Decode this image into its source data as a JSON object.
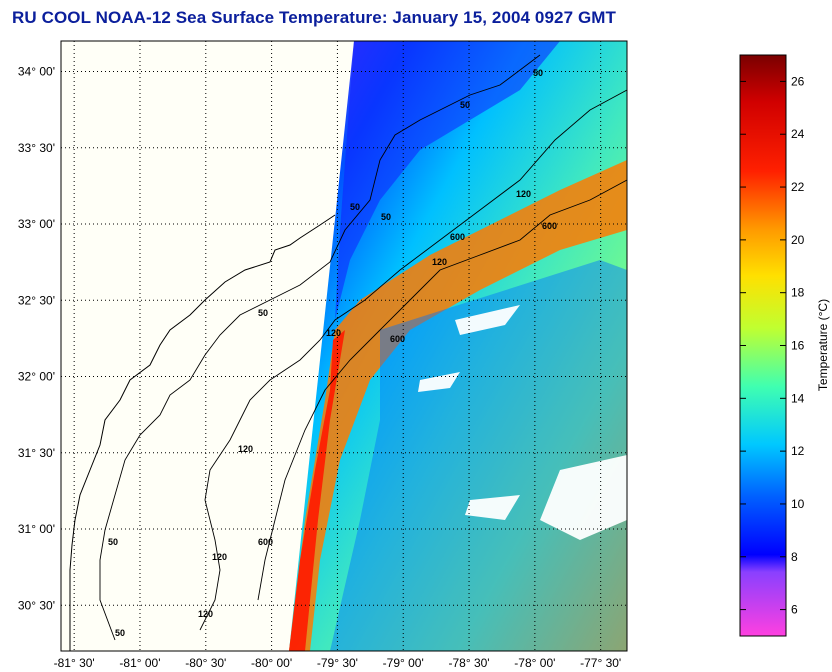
{
  "title": "RU COOL  NOAA-12  Sea Surface Temperature:  January 15, 2004 0927 GMT",
  "map": {
    "lat_labels": [
      "34° 00'",
      "33° 30'",
      "33° 00'",
      "32° 30'",
      "32° 00'",
      "31° 30'",
      "31° 00'",
      "30° 30'"
    ],
    "lon_labels": [
      "-81° 30'",
      "-81° 00'",
      "-80° 30'",
      "-80° 00'",
      "-79° 30'",
      "-79° 00'",
      "-78° 30'",
      "-78° 00'",
      "-77° 30'"
    ],
    "lat_range": [
      30.2,
      34.2
    ],
    "lon_range": [
      -81.6,
      -77.3
    ],
    "contour_labels": [
      "50",
      "50",
      "120",
      "50",
      "120",
      "600",
      "50",
      "120",
      "600",
      "120",
      "600",
      "50",
      "120",
      "50",
      "120",
      "600",
      "50"
    ],
    "land_color": "#fffff7",
    "coast_color": "#000000"
  },
  "colorbar": {
    "label": "Temperature (°C)",
    "ticks": [
      "26",
      "24",
      "22",
      "20",
      "18",
      "16",
      "14",
      "12",
      "10",
      "8",
      "6"
    ],
    "range": [
      5,
      27
    ],
    "colors": [
      "#ff40e0",
      "#a040ff",
      "#0000ff",
      "#0060ff",
      "#00c0ff",
      "#40ffd0",
      "#a0ff60",
      "#ffff00",
      "#ff9900",
      "#ff1000",
      "#800000"
    ]
  }
}
